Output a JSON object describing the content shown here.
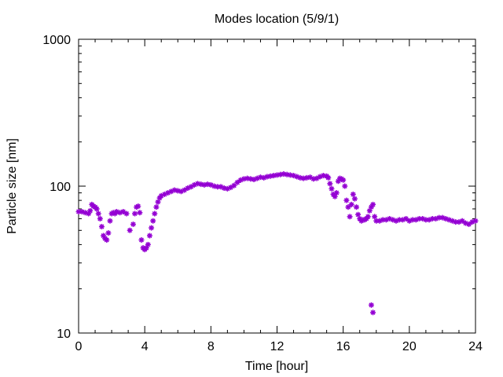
{
  "chart_data": {
    "type": "scatter",
    "title": "Modes location (5/9/1)",
    "xlabel": "Time [hour]",
    "ylabel": "Particle size [nm]",
    "xlim": [
      0,
      24
    ],
    "ylim": [
      10,
      1000
    ],
    "y_scale": "log",
    "x_ticks": [
      0,
      4,
      8,
      12,
      16,
      20,
      24
    ],
    "x_tick_labels": [
      "0",
      "4",
      "8",
      "12",
      "16",
      "20",
      "24"
    ],
    "y_ticks": [
      10,
      100,
      1000
    ],
    "y_tick_labels": [
      "10",
      "100",
      "1000"
    ],
    "grid": false,
    "marker_color": "#9400d3",
    "series": [
      {
        "marker": "asterisk",
        "x": [
          0.0,
          0.2,
          0.4,
          0.6,
          0.7,
          0.8,
          0.9,
          1.0,
          1.1,
          1.2,
          1.3,
          1.4,
          1.5,
          1.6,
          1.7,
          1.8,
          1.9,
          2.0,
          2.1,
          2.2,
          2.3,
          2.5,
          2.7,
          2.9,
          3.1,
          3.3,
          3.4,
          3.5,
          3.6,
          3.7,
          3.8,
          3.9,
          4.0,
          4.1,
          4.2,
          4.3,
          4.4,
          4.5,
          4.6,
          4.7,
          4.8,
          4.9,
          5.0,
          5.2,
          5.4,
          5.6,
          5.8,
          6.0,
          6.2,
          6.4,
          6.6,
          6.8,
          7.0,
          7.2,
          7.4,
          7.6,
          7.8,
          8.0,
          8.2,
          8.4,
          8.6,
          8.8,
          9.0,
          9.2,
          9.4,
          9.6,
          9.8,
          10.0,
          10.2,
          10.4,
          10.6,
          10.8,
          11.0,
          11.2,
          11.4,
          11.6,
          11.8,
          12.0,
          12.2,
          12.4,
          12.6,
          12.8,
          13.0,
          13.2,
          13.4,
          13.6,
          13.8,
          14.0,
          14.2,
          14.4,
          14.6,
          14.8,
          15.0,
          15.1,
          15.2,
          15.3,
          15.4,
          15.5,
          15.6,
          15.7,
          15.8,
          15.9,
          16.0,
          16.1,
          16.2,
          16.3,
          16.4,
          16.5,
          16.6,
          16.7,
          16.8,
          16.9,
          17.0,
          17.1,
          17.2,
          17.3,
          17.4,
          17.5,
          17.6,
          17.7,
          17.8,
          17.9,
          18.0,
          18.2,
          18.4,
          18.6,
          18.8,
          19.0,
          19.2,
          19.4,
          19.6,
          19.8,
          20.0,
          20.2,
          20.4,
          20.6,
          20.8,
          21.0,
          21.2,
          21.4,
          21.6,
          21.8,
          22.0,
          22.2,
          22.4,
          22.6,
          22.8,
          23.0,
          23.2,
          23.4,
          23.6,
          23.8,
          24.0,
          17.7,
          17.8
        ],
        "y": [
          67,
          67,
          66,
          65,
          68,
          75,
          73,
          72,
          70,
          65,
          60,
          53,
          46,
          44,
          43,
          48,
          58,
          65,
          66,
          65,
          67,
          66,
          67,
          65,
          50,
          55,
          65,
          72,
          73,
          66,
          43,
          38,
          37,
          38,
          40,
          46,
          52,
          58,
          65,
          72,
          78,
          83,
          86,
          88,
          90,
          92,
          94,
          93,
          92,
          94,
          97,
          99,
          102,
          104,
          103,
          102,
          103,
          102,
          100,
          99,
          99,
          97,
          96,
          98,
          101,
          106,
          110,
          112,
          113,
          112,
          111,
          113,
          115,
          114,
          116,
          117,
          118,
          119,
          120,
          121,
          120,
          119,
          118,
          116,
          114,
          113,
          114,
          115,
          112,
          113,
          116,
          118,
          117,
          114,
          104,
          96,
          88,
          85,
          90,
          108,
          113,
          112,
          110,
          100,
          80,
          72,
          62,
          75,
          88,
          82,
          72,
          64,
          60,
          58,
          59,
          59,
          60,
          62,
          68,
          72,
          75,
          62,
          58,
          58,
          59,
          59,
          60,
          59,
          58,
          59,
          59,
          60,
          58,
          59,
          59,
          60,
          60,
          59,
          59,
          60,
          60,
          61,
          61,
          60,
          59,
          58,
          57,
          57,
          58,
          56,
          55,
          57,
          58,
          15.5,
          13.8
        ]
      }
    ]
  }
}
